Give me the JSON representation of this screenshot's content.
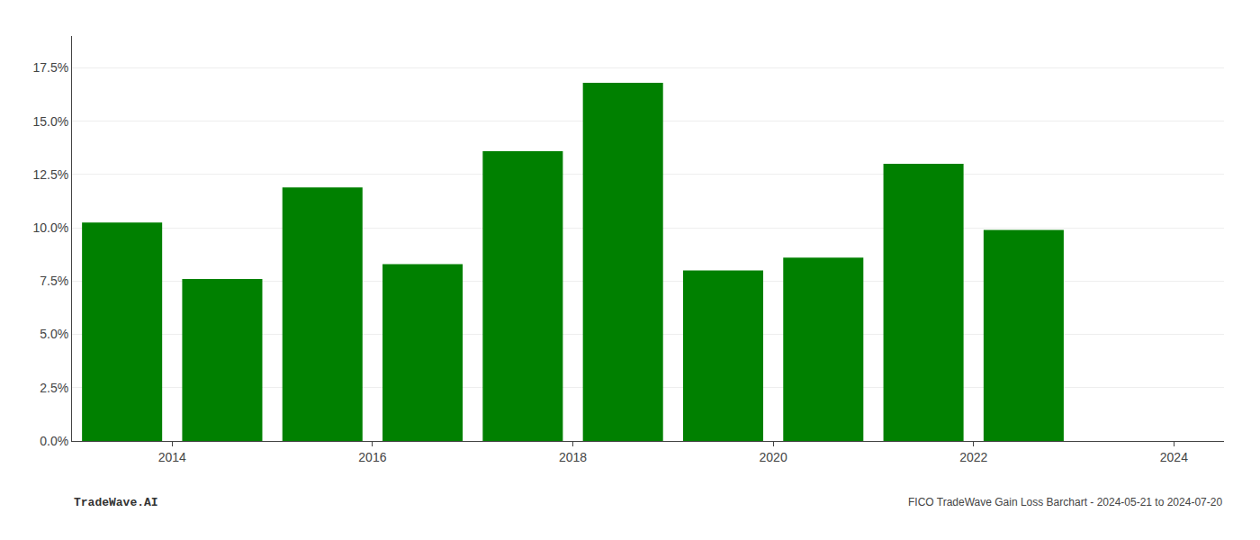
{
  "chart_data": {
    "type": "bar",
    "x": [
      2013.5,
      2014.5,
      2015.5,
      2016.5,
      2017.5,
      2018.5,
      2019.5,
      2020.5,
      2021.5,
      2022.5
    ],
    "values": [
      0.1025,
      0.076,
      0.119,
      0.083,
      0.136,
      0.168,
      0.08,
      0.086,
      0.13,
      0.099
    ],
    "color": "#008000",
    "xlim": [
      2013.0,
      2024.5
    ],
    "xticks": [
      2014,
      2016,
      2018,
      2020,
      2022,
      2024
    ],
    "ylim": [
      0,
      0.19
    ],
    "yticks": [
      {
        "value": 0.0,
        "label": "0.0%"
      },
      {
        "value": 0.025,
        "label": "2.5%"
      },
      {
        "value": 0.05,
        "label": "5.0%"
      },
      {
        "value": 0.075,
        "label": "7.5%"
      },
      {
        "value": 0.1,
        "label": "10.0%"
      },
      {
        "value": 0.125,
        "label": "12.5%"
      },
      {
        "value": 0.15,
        "label": "15.0%"
      },
      {
        "value": 0.175,
        "label": "17.5%"
      }
    ],
    "grid": true,
    "annotations": [
      "TradeWave.AI",
      "FICO TradeWave Gain Loss Barchart - 2024-05-21 to 2024-07-20"
    ]
  }
}
